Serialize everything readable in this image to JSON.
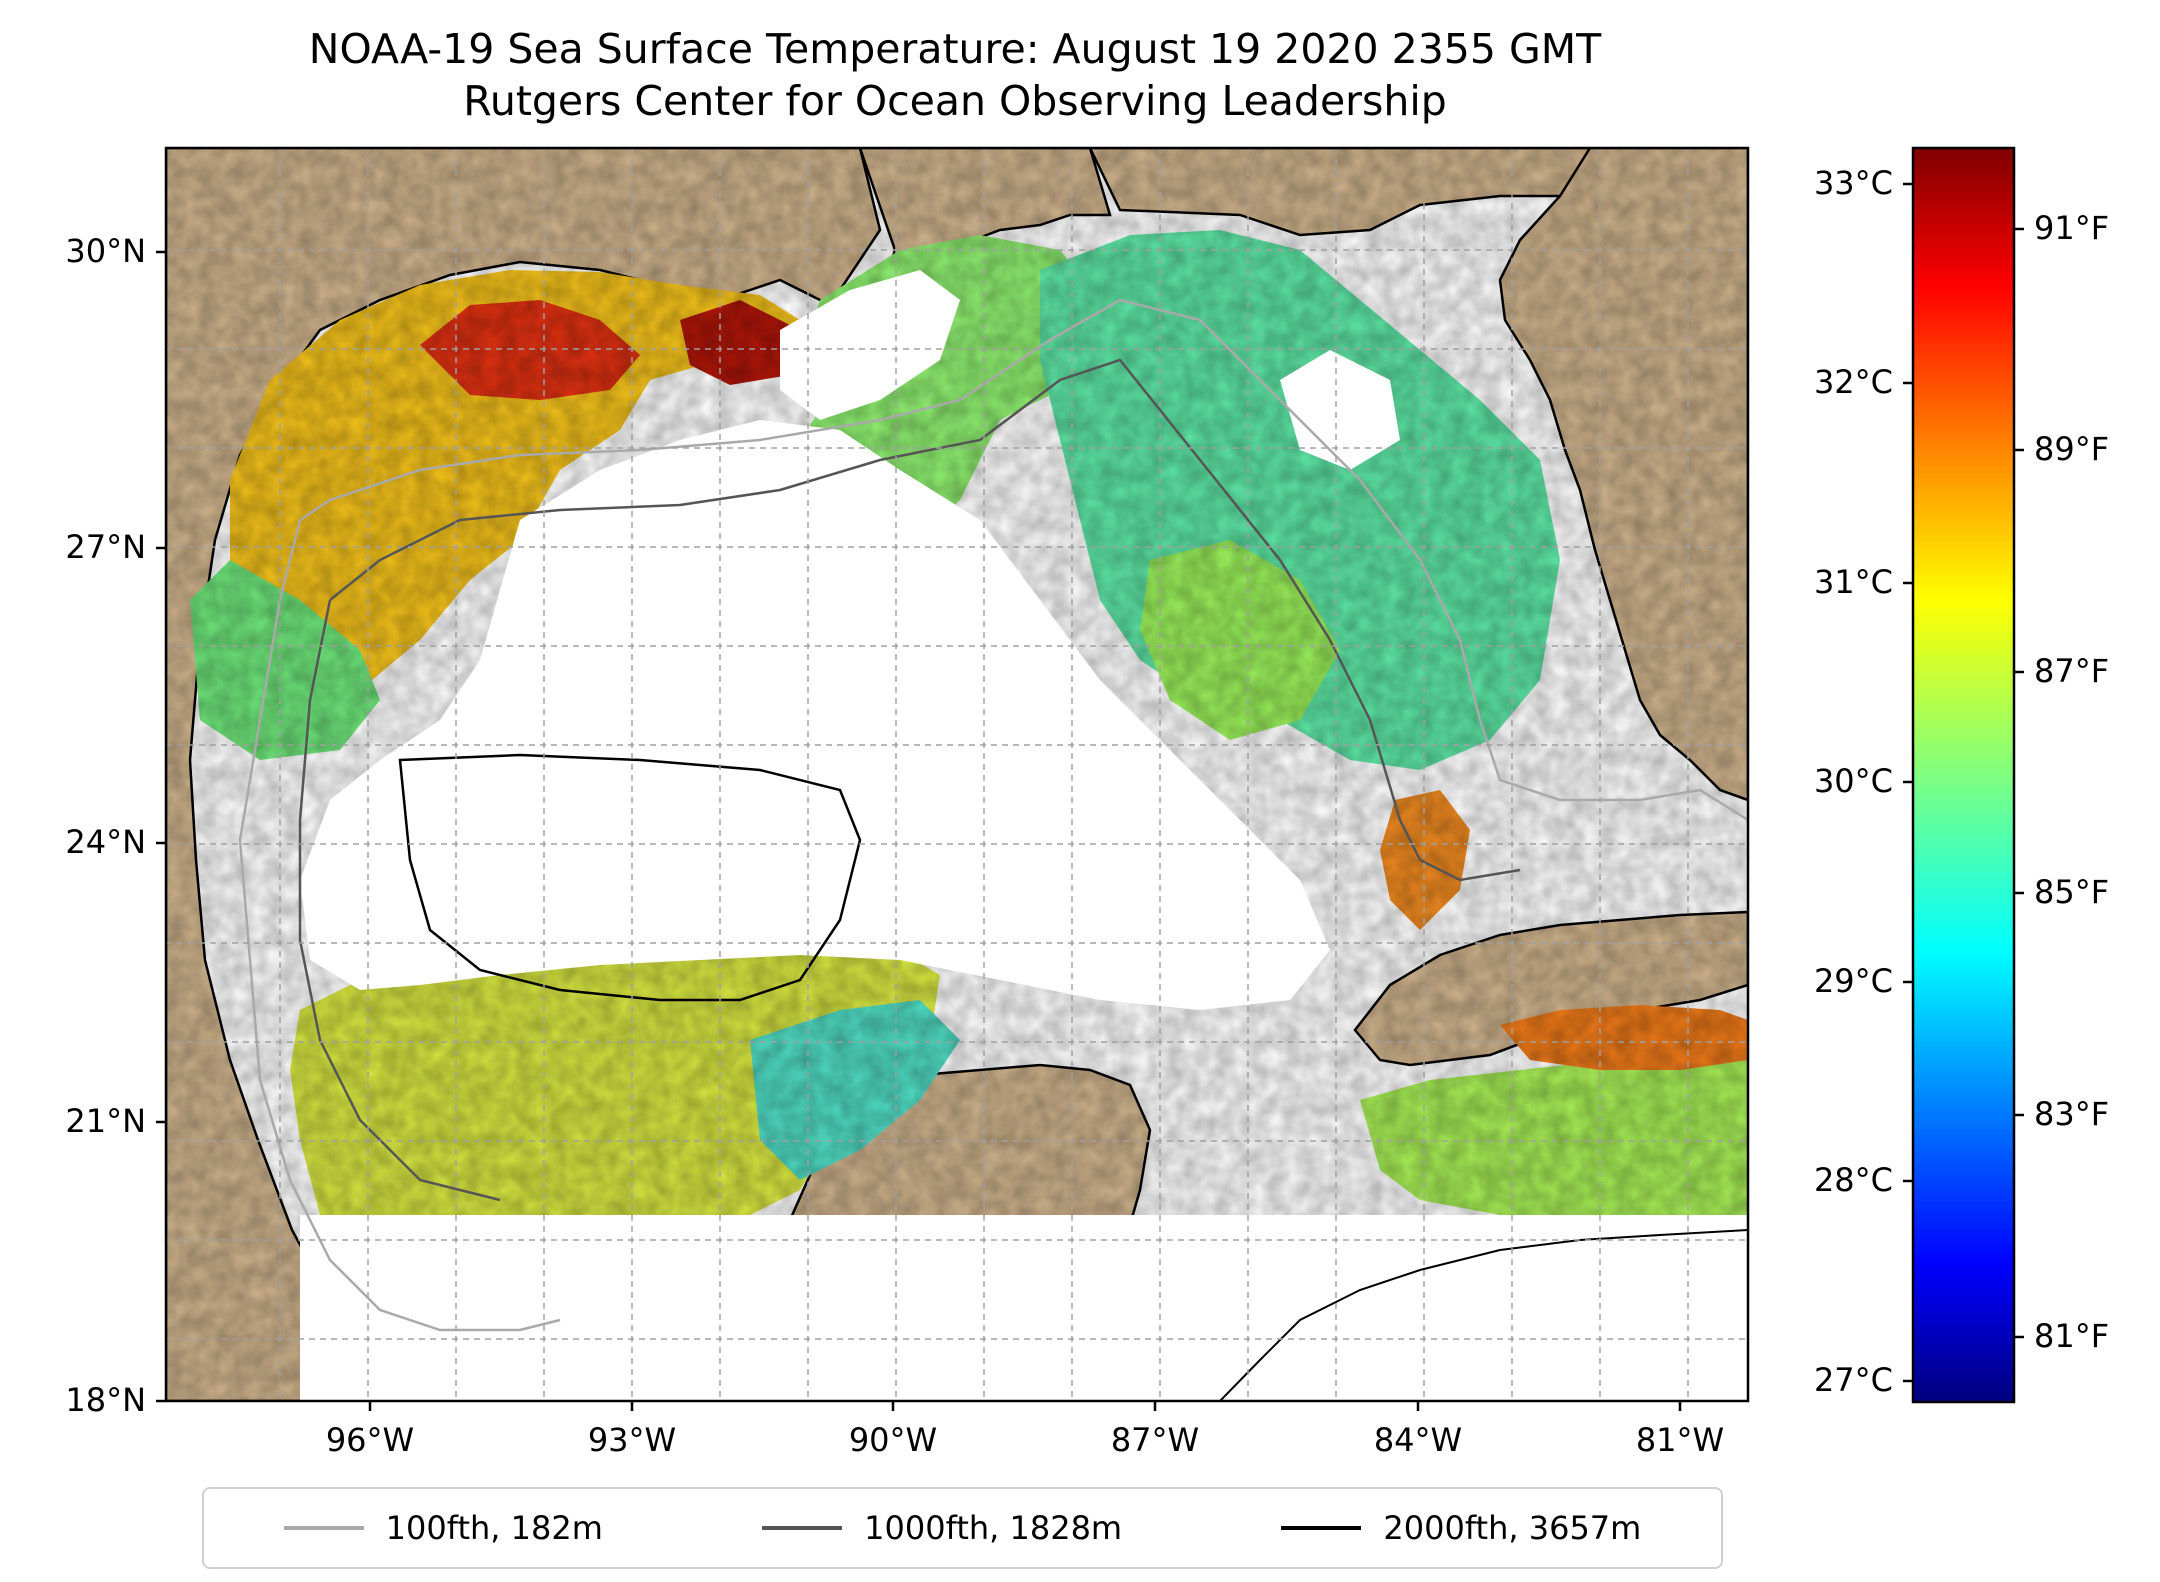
{
  "title": "NOAA-19 Sea Surface Temperature: August 19 2020 2355 GMT",
  "subtitle": "Rutgers Center for Ocean Observing Leadership",
  "map": {
    "lat_labels": [
      "30°N",
      "27°N",
      "24°N",
      "21°N",
      "18°N"
    ],
    "lon_labels": [
      "96°W",
      "93°W",
      "90°W",
      "87°W",
      "84°W",
      "81°W"
    ],
    "land_color": "#cfb38c",
    "water_color": "#ffffff",
    "lake_color": "#9fb8e0",
    "colormap": "jet"
  },
  "colorbar": {
    "celsius_labels": [
      "33°C",
      "32°C",
      "31°C",
      "30°C",
      "29°C",
      "28°C",
      "27°C"
    ],
    "fahrenheit_labels": [
      "91°F",
      "89°F",
      "87°F",
      "85°F",
      "83°F",
      "81°F"
    ],
    "range_c": [
      26.9,
      33.2
    ],
    "colors": [
      "#00007f",
      "#0000ff",
      "#007fff",
      "#00ffff",
      "#7fff7f",
      "#ffff00",
      "#ff7f00",
      "#ff0000",
      "#7f0000"
    ]
  },
  "legend": {
    "items": [
      {
        "label": "100fth, 182m",
        "color": "#a9a9a9"
      },
      {
        "label": "1000fth, 1828m",
        "color": "#555555"
      },
      {
        "label": "2000fth, 3657m",
        "color": "#000000"
      }
    ]
  }
}
